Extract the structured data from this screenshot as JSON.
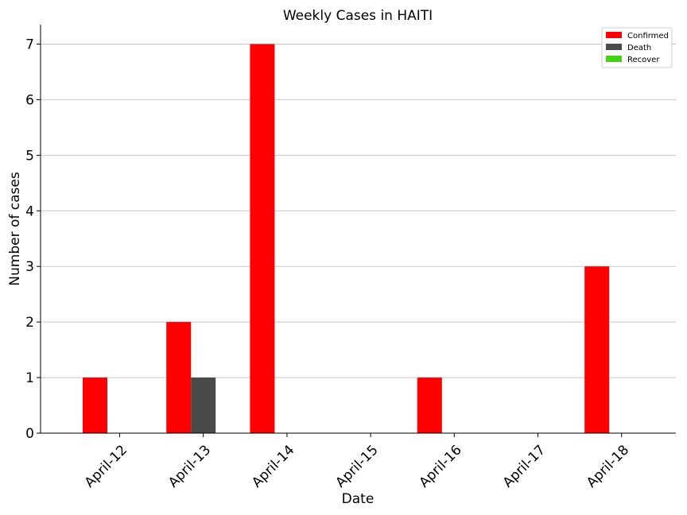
{
  "chart_data": {
    "type": "bar",
    "title": "Weekly Cases in HAITI",
    "xlabel": "Date",
    "ylabel": "Number of cases",
    "categories": [
      "April-12",
      "April-13",
      "April-14",
      "April-15",
      "April-16",
      "April-17",
      "April-18"
    ],
    "series": [
      {
        "name": "Confirmed",
        "color": "#ff0000",
        "values": [
          1,
          2,
          7,
          0,
          1,
          0,
          3
        ]
      },
      {
        "name": "Death",
        "color": "#4a4a4a",
        "values": [
          0,
          1,
          0,
          0,
          0,
          0,
          0
        ]
      },
      {
        "name": "Recover",
        "color": "#44d413",
        "values": [
          0,
          0,
          0,
          0,
          0,
          0,
          0
        ]
      }
    ],
    "ylim": [
      0,
      7.35
    ],
    "yticks": [
      0,
      1,
      2,
      3,
      4,
      5,
      6,
      7
    ],
    "grid": "horizontal",
    "legend_position": "top-right"
  }
}
